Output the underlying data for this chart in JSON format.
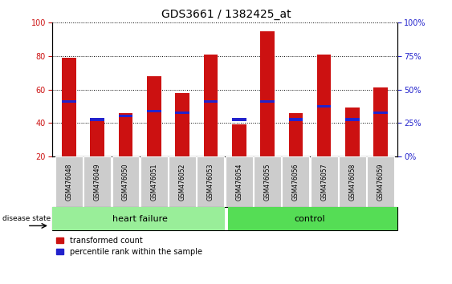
{
  "title": "GDS3661 / 1382425_at",
  "samples": [
    "GSM476048",
    "GSM476049",
    "GSM476050",
    "GSM476051",
    "GSM476052",
    "GSM476053",
    "GSM476054",
    "GSM476055",
    "GSM476056",
    "GSM476057",
    "GSM476058",
    "GSM476059"
  ],
  "red_values": [
    79,
    41,
    46,
    68,
    58,
    81,
    39,
    95,
    46,
    81,
    49,
    61
  ],
  "blue_values": [
    53,
    42,
    44,
    47,
    46,
    53,
    42,
    53,
    42,
    50,
    42,
    46
  ],
  "ylim_left": [
    20,
    100
  ],
  "ylim_right": [
    0,
    100
  ],
  "yticks_left": [
    20,
    40,
    60,
    80,
    100
  ],
  "yticks_right": [
    0,
    25,
    50,
    75,
    100
  ],
  "ytick_labels_right": [
    "0%",
    "25%",
    "50%",
    "75%",
    "100%"
  ],
  "group_labels": [
    "heart failure",
    "control"
  ],
  "disease_label": "disease state",
  "legend_red": "transformed count",
  "legend_blue": "percentile rank within the sample",
  "bar_color_red": "#cc1111",
  "bar_color_blue": "#2222cc",
  "heart_failure_color": "#99ee99",
  "control_color": "#55dd55",
  "bar_width": 0.5,
  "grid_color": "black",
  "background_color": "#ffffff",
  "tick_label_bg": "#cccccc"
}
